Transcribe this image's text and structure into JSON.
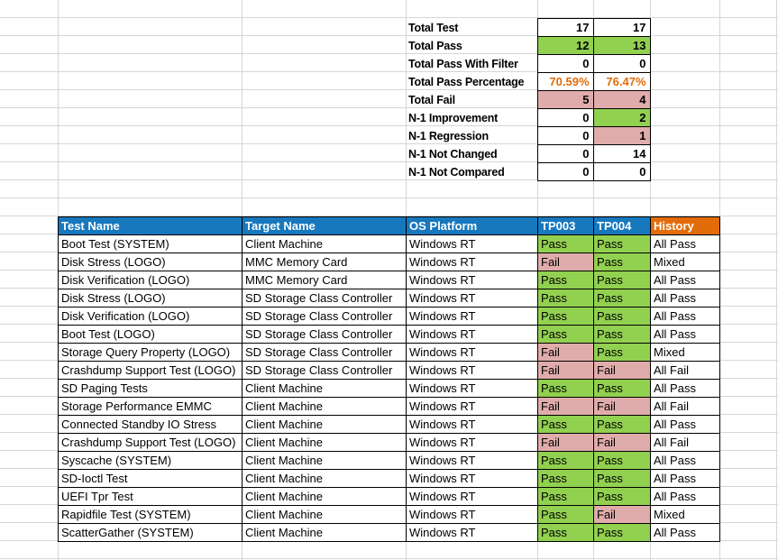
{
  "colors": {
    "header_blue": "#1778BE",
    "header_orange": "#E36C0A",
    "pass_green": "#92D050",
    "fail_pink": "#E0ACAB",
    "percentage_orange": "#E36C09",
    "gridline_gray": "#D6D6D6"
  },
  "summary": {
    "rows": [
      {
        "label": "Total Test",
        "values": [
          "17",
          "17"
        ],
        "fills": [
          "white",
          "white"
        ],
        "text": "black"
      },
      {
        "label": "Total Pass",
        "values": [
          "12",
          "13"
        ],
        "fills": [
          "green",
          "green"
        ],
        "text": "black"
      },
      {
        "label": "Total Pass With Filter",
        "values": [
          "0",
          "0"
        ],
        "fills": [
          "white",
          "white"
        ],
        "text": "black"
      },
      {
        "label": "Total Pass Percentage",
        "values": [
          "70.59%",
          "76.47%"
        ],
        "fills": [
          "white",
          "white"
        ],
        "text": "orange"
      },
      {
        "label": "Total Fail",
        "values": [
          "5",
          "4"
        ],
        "fills": [
          "pink",
          "pink"
        ],
        "text": "black"
      },
      {
        "label": "N-1 Improvement",
        "values": [
          "0",
          "2"
        ],
        "fills": [
          "white",
          "green"
        ],
        "text": "black"
      },
      {
        "label": "N-1 Regression",
        "values": [
          "0",
          "1"
        ],
        "fills": [
          "white",
          "pink"
        ],
        "text": "black"
      },
      {
        "label": "N-1 Not Changed",
        "values": [
          "0",
          "14"
        ],
        "fills": [
          "white",
          "white"
        ],
        "text": "black"
      },
      {
        "label": "N-1 Not Compared",
        "values": [
          "0",
          "0"
        ],
        "fills": [
          "white",
          "white"
        ],
        "text": "black"
      }
    ]
  },
  "results": {
    "columns": [
      {
        "id": "test_name",
        "label": "Test Name",
        "fill": "blue"
      },
      {
        "id": "target_name",
        "label": "Target Name",
        "fill": "blue"
      },
      {
        "id": "os_platform",
        "label": "OS Platform",
        "fill": "blue"
      },
      {
        "id": "tp003",
        "label": "TP003",
        "fill": "blue"
      },
      {
        "id": "tp004",
        "label": "TP004",
        "fill": "blue"
      },
      {
        "id": "history",
        "label": "History",
        "fill": "orange"
      }
    ],
    "rows": [
      {
        "test_name": "Boot Test (SYSTEM)",
        "target_name": "Client Machine",
        "os_platform": "Windows RT",
        "tp003": "Pass",
        "tp004": "Pass",
        "history": "All Pass"
      },
      {
        "test_name": "Disk Stress (LOGO)",
        "target_name": "MMC Memory Card",
        "os_platform": "Windows RT",
        "tp003": "Fail",
        "tp004": "Pass",
        "history": "Mixed"
      },
      {
        "test_name": "Disk Verification (LOGO)",
        "target_name": "MMC Memory Card",
        "os_platform": "Windows RT",
        "tp003": "Pass",
        "tp004": "Pass",
        "history": "All Pass"
      },
      {
        "test_name": "Disk Stress (LOGO)",
        "target_name": "SD Storage Class Controller",
        "os_platform": "Windows RT",
        "tp003": "Pass",
        "tp004": "Pass",
        "history": "All Pass"
      },
      {
        "test_name": "Disk Verification (LOGO)",
        "target_name": "SD Storage Class Controller",
        "os_platform": "Windows RT",
        "tp003": "Pass",
        "tp004": "Pass",
        "history": "All Pass"
      },
      {
        "test_name": "Boot Test (LOGO)",
        "target_name": "SD Storage Class Controller",
        "os_platform": "Windows RT",
        "tp003": "Pass",
        "tp004": "Pass",
        "history": "All Pass"
      },
      {
        "test_name": "Storage Query Property (LOGO)",
        "target_name": "SD Storage Class Controller",
        "os_platform": "Windows RT",
        "tp003": "Fail",
        "tp004": "Pass",
        "history": "Mixed"
      },
      {
        "test_name": "Crashdump Support Test (LOGO)",
        "target_name": "SD Storage Class Controller",
        "os_platform": "Windows RT",
        "tp003": "Fail",
        "tp004": "Fail",
        "history": "All Fail"
      },
      {
        "test_name": "SD Paging Tests",
        "target_name": "Client Machine",
        "os_platform": "Windows RT",
        "tp003": "Pass",
        "tp004": "Pass",
        "history": "All Pass"
      },
      {
        "test_name": "Storage Performance EMMC",
        "target_name": "Client Machine",
        "os_platform": "Windows RT",
        "tp003": "Fail",
        "tp004": "Fail",
        "history": "All Fail"
      },
      {
        "test_name": "Connected Standby IO Stress",
        "target_name": "Client Machine",
        "os_platform": "Windows RT",
        "tp003": "Pass",
        "tp004": "Pass",
        "history": "All Pass"
      },
      {
        "test_name": "Crashdump Support Test (LOGO)",
        "target_name": "Client Machine",
        "os_platform": "Windows RT",
        "tp003": "Fail",
        "tp004": "Fail",
        "history": "All Fail"
      },
      {
        "test_name": "Syscache (SYSTEM)",
        "target_name": "Client Machine",
        "os_platform": "Windows RT",
        "tp003": "Pass",
        "tp004": "Pass",
        "history": "All Pass"
      },
      {
        "test_name": "SD-Ioctl Test",
        "target_name": "Client Machine",
        "os_platform": "Windows RT",
        "tp003": "Pass",
        "tp004": "Pass",
        "history": "All Pass"
      },
      {
        "test_name": "UEFI Tpr Test",
        "target_name": "Client Machine",
        "os_platform": "Windows RT",
        "tp003": "Pass",
        "tp004": "Pass",
        "history": "All Pass"
      },
      {
        "test_name": "Rapidfile Test (SYSTEM)",
        "target_name": "Client Machine",
        "os_platform": "Windows RT",
        "tp003": "Pass",
        "tp004": "Fail",
        "history": "Mixed"
      },
      {
        "test_name": "ScatterGather (SYSTEM)",
        "target_name": "Client Machine",
        "os_platform": "Windows RT",
        "tp003": "Pass",
        "tp004": "Pass",
        "history": "All Pass"
      }
    ]
  }
}
